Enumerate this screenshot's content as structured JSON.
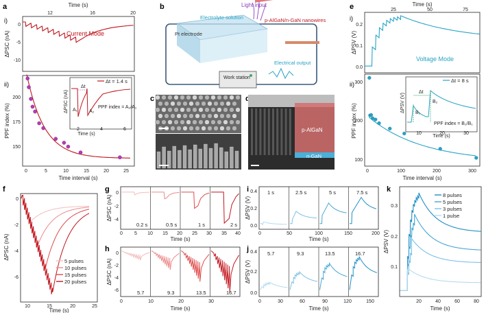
{
  "panel_labels": [
    "a",
    "b",
    "c",
    "d",
    "e",
    "f",
    "g",
    "h",
    "i",
    "j",
    "k"
  ],
  "colors": {
    "red_dark": "#c0141c",
    "red_mid": "#de4a4a",
    "red_light": "#eb8a8a",
    "red_pale": "#f4bcbc",
    "blue_dark": "#1f8ec4",
    "blue_mid": "#45a6d6",
    "blue_light": "#7cc0e4",
    "blue_pale": "#b3dbf0",
    "magenta": "#b33db3",
    "teal": "#27a3c6",
    "green": "#3ea86e"
  },
  "panel_a": {
    "sub_i": "i)",
    "sub_ii": "ii)",
    "top_axis_label": "Time (s)",
    "top_ticks": [
      "12",
      "16",
      "20"
    ],
    "ylabel_i": "ΔPSC (nA)",
    "yticks_i": [
      "0",
      "-5",
      "-10"
    ],
    "mode_label": "Current Mode",
    "ylabel_ii": "PPF index (%)",
    "yticks_ii": [
      "200",
      "175",
      "150"
    ],
    "xlabel_ii": "Time interval (s)",
    "xticks_ii": [
      "0",
      "5",
      "10",
      "15",
      "20",
      "25"
    ],
    "legend": "Δt = 1.4 s",
    "inset": {
      "ylabel": "ΔPSC (nA)",
      "xlabel": "Time (s)",
      "xticks": [
        "2",
        "4",
        "6"
      ],
      "yticks": [
        "0",
        "-4",
        "-8"
      ],
      "a1": "A₁",
      "a2": "A₂",
      "dt": "Δt",
      "formula": "PPF index = A₂/A₁"
    }
  },
  "panel_b": {
    "electrolyte": "Electrolyte solution",
    "light": "Light input",
    "pt": "Pt electrode",
    "nanowires": "p-AlGaN/n-GaN nanowires",
    "output": "Electrical output",
    "workstation": "Work station"
  },
  "panel_d": {
    "p_layer": "p-AlGaN",
    "n_layer": "n-GaN"
  },
  "panel_e": {
    "sub_i": "i)",
    "sub_ii": "ii)",
    "top_axis_label": "Time (s)",
    "top_ticks": [
      "25",
      "50",
      "75"
    ],
    "ylabel_i": "ΔPSV (V)",
    "yticks_i": [
      "0.2",
      "0.1",
      "0.0"
    ],
    "mode_label": "Voltage Mode",
    "ylabel_ii": "PPF index (%)",
    "yticks_ii": [
      "300",
      "200",
      "100"
    ],
    "xlabel_ii": "Time interval (s)",
    "xticks_ii": [
      "0",
      "100",
      "200",
      "300"
    ],
    "legend": "Δt = 8 s",
    "inset": {
      "ylabel": "ΔPSV (V)",
      "xlabel": "Time (s)",
      "xticks": [
        "10",
        "20",
        "30"
      ],
      "yticks": [
        "0.10",
        "0.05",
        "0.00"
      ],
      "b1": "B₁",
      "b2": "B₂",
      "dt": "Δt",
      "formula": "PPF index = B₂/B₁"
    }
  },
  "panel_f": {
    "ylabel": "ΔPSC (nA)",
    "xlabel": "Time (s)",
    "yticks": [
      "0",
      "-2",
      "-4",
      "-6"
    ],
    "xticks": [
      "10",
      "15",
      "20",
      "25"
    ],
    "legend": [
      "5 pulses",
      "10 pulses",
      "15 pulses",
      "20 pulses"
    ]
  },
  "panel_g": {
    "ylabel": "ΔPSC (nA)",
    "yticks": [
      "0",
      "-2",
      "-4"
    ],
    "xlabel": "Time (s)",
    "labels": [
      "0.2 s",
      "0.5 s",
      "1 s",
      "2 s"
    ],
    "xticks": [
      "0",
      "5",
      "10",
      "15",
      "20",
      "25",
      "30",
      "35",
      "40"
    ]
  },
  "panel_h": {
    "ylabel": "ΔPSC (nA)",
    "yticks": [
      "0",
      "-2",
      "-4",
      "-6"
    ],
    "xlabel": "Time (s)",
    "labels": [
      "5.7",
      "9.3",
      "13.5",
      "16.7"
    ],
    "xticks": [
      "0",
      "10",
      "20",
      "30"
    ]
  },
  "panel_i": {
    "ylabel": "ΔPSV (V)",
    "yticks": [
      "0.4",
      "0.2",
      "0.0"
    ],
    "xlabel": "Time (s)",
    "labels": [
      "1 s",
      "2.5 s",
      "5 s",
      "7.5 s"
    ],
    "xticks": [
      "0",
      "50",
      "100",
      "150",
      "200"
    ]
  },
  "panel_j": {
    "ylabel": "ΔPSV (V)",
    "yticks": [
      "0.4",
      "0.2",
      "0.0"
    ],
    "xlabel": "Time (s)",
    "labels": [
      "5.7",
      "9.3",
      "13.5",
      "16.7"
    ],
    "xticks": [
      "0",
      "30",
      "60",
      "90",
      "120",
      "150"
    ]
  },
  "panel_k": {
    "ylabel": "ΔPSV (V)",
    "yticks": [
      "0.3",
      "0.2",
      "0.1"
    ],
    "xlabel": "Time (s)",
    "xticks": [
      "20",
      "40",
      "60",
      "80"
    ],
    "legend": [
      "8 pulses",
      "5 pulses",
      "3 pulses",
      "1 pulse"
    ]
  },
  "chart_data": [
    {
      "id": "a_i",
      "type": "line",
      "xlabel": "Time (s)",
      "ylabel": "ΔPSC (nA)",
      "xlim": [
        8,
        20
      ],
      "ylim": [
        -13,
        2
      ],
      "series": [
        {
          "name": "Current Mode",
          "pulses": 10,
          "start": 8.3,
          "interval": 0.6,
          "step": 1.2,
          "decay": 1.4,
          "tau": 2.4
        }
      ]
    },
    {
      "id": "a_ii",
      "type": "scatter",
      "xlabel": "Time interval (s)",
      "ylabel": "PPF index (%)",
      "xlim": [
        -1,
        26
      ],
      "ylim": [
        132,
        225
      ],
      "points": [
        [
          0.2,
          222
        ],
        [
          0.5,
          213
        ],
        [
          1.0,
          201
        ],
        [
          1.4,
          193
        ],
        [
          2.0,
          188
        ],
        [
          3.0,
          176
        ],
        [
          4.0,
          171
        ],
        [
          7.0,
          160
        ],
        [
          9.0,
          156
        ],
        [
          10.0,
          152
        ],
        [
          13.0,
          146
        ],
        [
          22.5,
          141
        ]
      ],
      "fit": {
        "base": 140,
        "amp": 86,
        "tau": 4.3
      }
    },
    {
      "id": "e_i",
      "type": "line",
      "xlabel": "Time (s)",
      "ylabel": "ΔPSV (V)",
      "xlim": [
        0,
        80
      ],
      "ylim": [
        -0.01,
        0.26
      ],
      "series": [
        {
          "name": "Voltage Mode",
          "pulses": 8,
          "start": 5,
          "interval": 2.5,
          "peak": 0.245,
          "decay_to": 0.135,
          "tau": 40
        }
      ]
    },
    {
      "id": "e_ii",
      "type": "scatter",
      "xlabel": "Time interval (s)",
      "ylabel": "PPF index (%)",
      "xlim": [
        -10,
        310
      ],
      "ylim": [
        82,
        305
      ],
      "points": [
        [
          3,
          296
        ],
        [
          5,
          205
        ],
        [
          8,
          206
        ],
        [
          12,
          198
        ],
        [
          20,
          195
        ],
        [
          30,
          186
        ],
        [
          60,
          173
        ],
        [
          100,
          161
        ],
        [
          200,
          124
        ],
        [
          300,
          102
        ]
      ],
      "fit": {
        "base": 92,
        "amp": 110,
        "tau": 150
      }
    },
    {
      "id": "f",
      "type": "line",
      "xlabel": "Time (s)",
      "ylabel": "ΔPSC (nA)",
      "xlim": [
        9.5,
        26
      ],
      "ylim": [
        -7.8,
        1
      ],
      "series": [
        {
          "name": "5 pulses",
          "pulses": 5
        },
        {
          "name": "10 pulses",
          "pulses": 10
        },
        {
          "name": "15 pulses",
          "pulses": 15
        },
        {
          "name": "20 pulses",
          "pulses": 20
        }
      ]
    },
    {
      "id": "g",
      "type": "line",
      "xlabel": "Time (s)",
      "ylabel": "ΔPSC (nA)",
      "ylim": [
        -5.5,
        0.8
      ],
      "series": [
        {
          "name": "0.2 s",
          "peak": -0.4
        },
        {
          "name": "0.5 s",
          "peak": -1.0
        },
        {
          "name": "1 s",
          "peak": -2.4
        },
        {
          "name": "2 s",
          "peak": -4.6
        }
      ]
    },
    {
      "id": "h",
      "type": "line",
      "xlabel": "Time (s)",
      "ylabel": "ΔPSC (nA)",
      "ylim": [
        -7.5,
        0.8
      ],
      "series": [
        {
          "name": "5.7",
          "pulses": 10,
          "peak": -1.4
        },
        {
          "name": "9.3",
          "pulses": 10,
          "peak": -3.0
        },
        {
          "name": "13.5",
          "pulses": 10,
          "peak": -5.0
        },
        {
          "name": "16.7",
          "pulses": 10,
          "peak": -6.8
        }
      ]
    },
    {
      "id": "i",
      "type": "line",
      "xlabel": "Time (s)",
      "ylabel": "ΔPSV (V)",
      "xlim": [
        0,
        200
      ],
      "ylim": [
        -0.02,
        0.5
      ],
      "series": [
        {
          "name": "1 s",
          "peak": 0.07
        },
        {
          "name": "2.5 s",
          "peak": 0.2
        },
        {
          "name": "5 s",
          "peak": 0.3
        },
        {
          "name": "7.5 s",
          "peak": 0.37
        }
      ]
    },
    {
      "id": "j",
      "type": "line",
      "xlabel": "Time (s)",
      "ylabel": "ΔPSV (V)",
      "xlim": [
        0,
        160
      ],
      "ylim": [
        -0.02,
        0.5
      ],
      "series": [
        {
          "name": "5.7",
          "peak": 0.13
        },
        {
          "name": "9.3",
          "peak": 0.24
        },
        {
          "name": "13.5",
          "peak": 0.33
        },
        {
          "name": "16.7",
          "peak": 0.4
        }
      ]
    },
    {
      "id": "k",
      "type": "line",
      "xlabel": "Time (s)",
      "ylabel": "ΔPSV (V)",
      "xlim": [
        0,
        85
      ],
      "ylim": [
        0,
        0.36
      ],
      "series": [
        {
          "name": "8 pulses",
          "pulses": 8,
          "peak": 0.34,
          "end": 0.21
        },
        {
          "name": "5 pulses",
          "pulses": 5,
          "peak": 0.27,
          "end": 0.15
        },
        {
          "name": "3 pulses",
          "pulses": 3,
          "peak": 0.19,
          "end": 0.11
        },
        {
          "name": "1 pulse",
          "pulses": 1,
          "peak": 0.09,
          "end": 0.045
        }
      ]
    }
  ]
}
